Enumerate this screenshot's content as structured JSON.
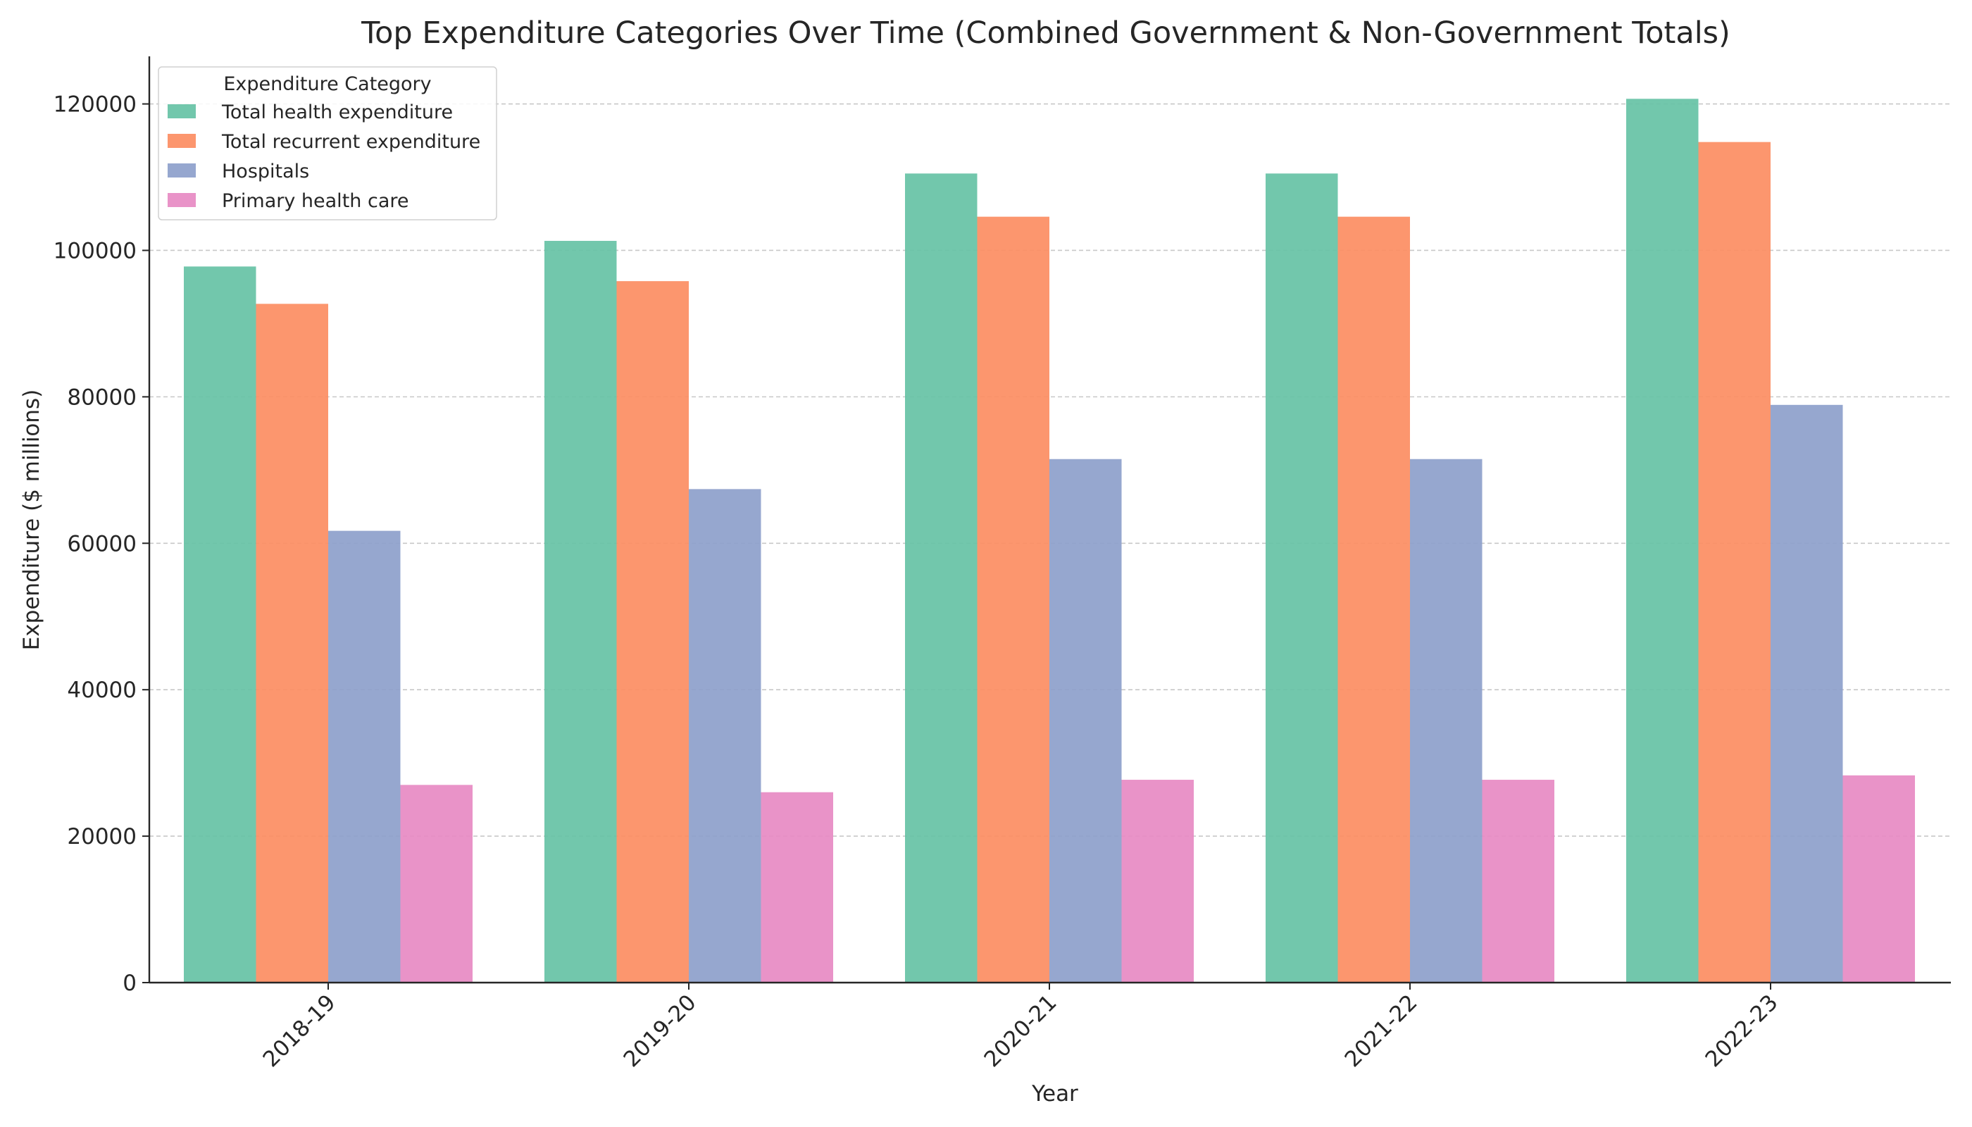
{
  "chart_data": {
    "type": "bar",
    "title": "Top Expenditure Categories Over Time (Combined Government & Non-Government Totals)",
    "xlabel": "Year",
    "ylabel": "Expenditure ($ millions)",
    "categories": [
      "2018-19",
      "2019-20",
      "2020-21",
      "2021-22",
      "2022-23"
    ],
    "ylim": [
      0,
      126500
    ],
    "yticks": [
      0,
      20000,
      40000,
      60000,
      80000,
      100000,
      120000
    ],
    "ytick_labels": [
      "0",
      "20000",
      "40000",
      "60000",
      "80000",
      "100000",
      "120000"
    ],
    "grid": "horizontal-dashed",
    "legend": {
      "title": "Expenditure Category",
      "placement": "top-left"
    },
    "series": [
      {
        "name": "Total health expenditure",
        "color": "#66c2a5",
        "values": [
          97800,
          101300,
          110500,
          110500,
          120700
        ]
      },
      {
        "name": "Total recurrent expenditure",
        "color": "#fc8d62",
        "values": [
          92700,
          95800,
          104600,
          104600,
          114800
        ]
      },
      {
        "name": "Hospitals",
        "color": "#8da0cb",
        "values": [
          61700,
          67400,
          71500,
          71500,
          78900
        ]
      },
      {
        "name": "Primary health care",
        "color": "#e78ac3",
        "values": [
          27000,
          26000,
          27700,
          27700,
          28300
        ]
      }
    ]
  }
}
